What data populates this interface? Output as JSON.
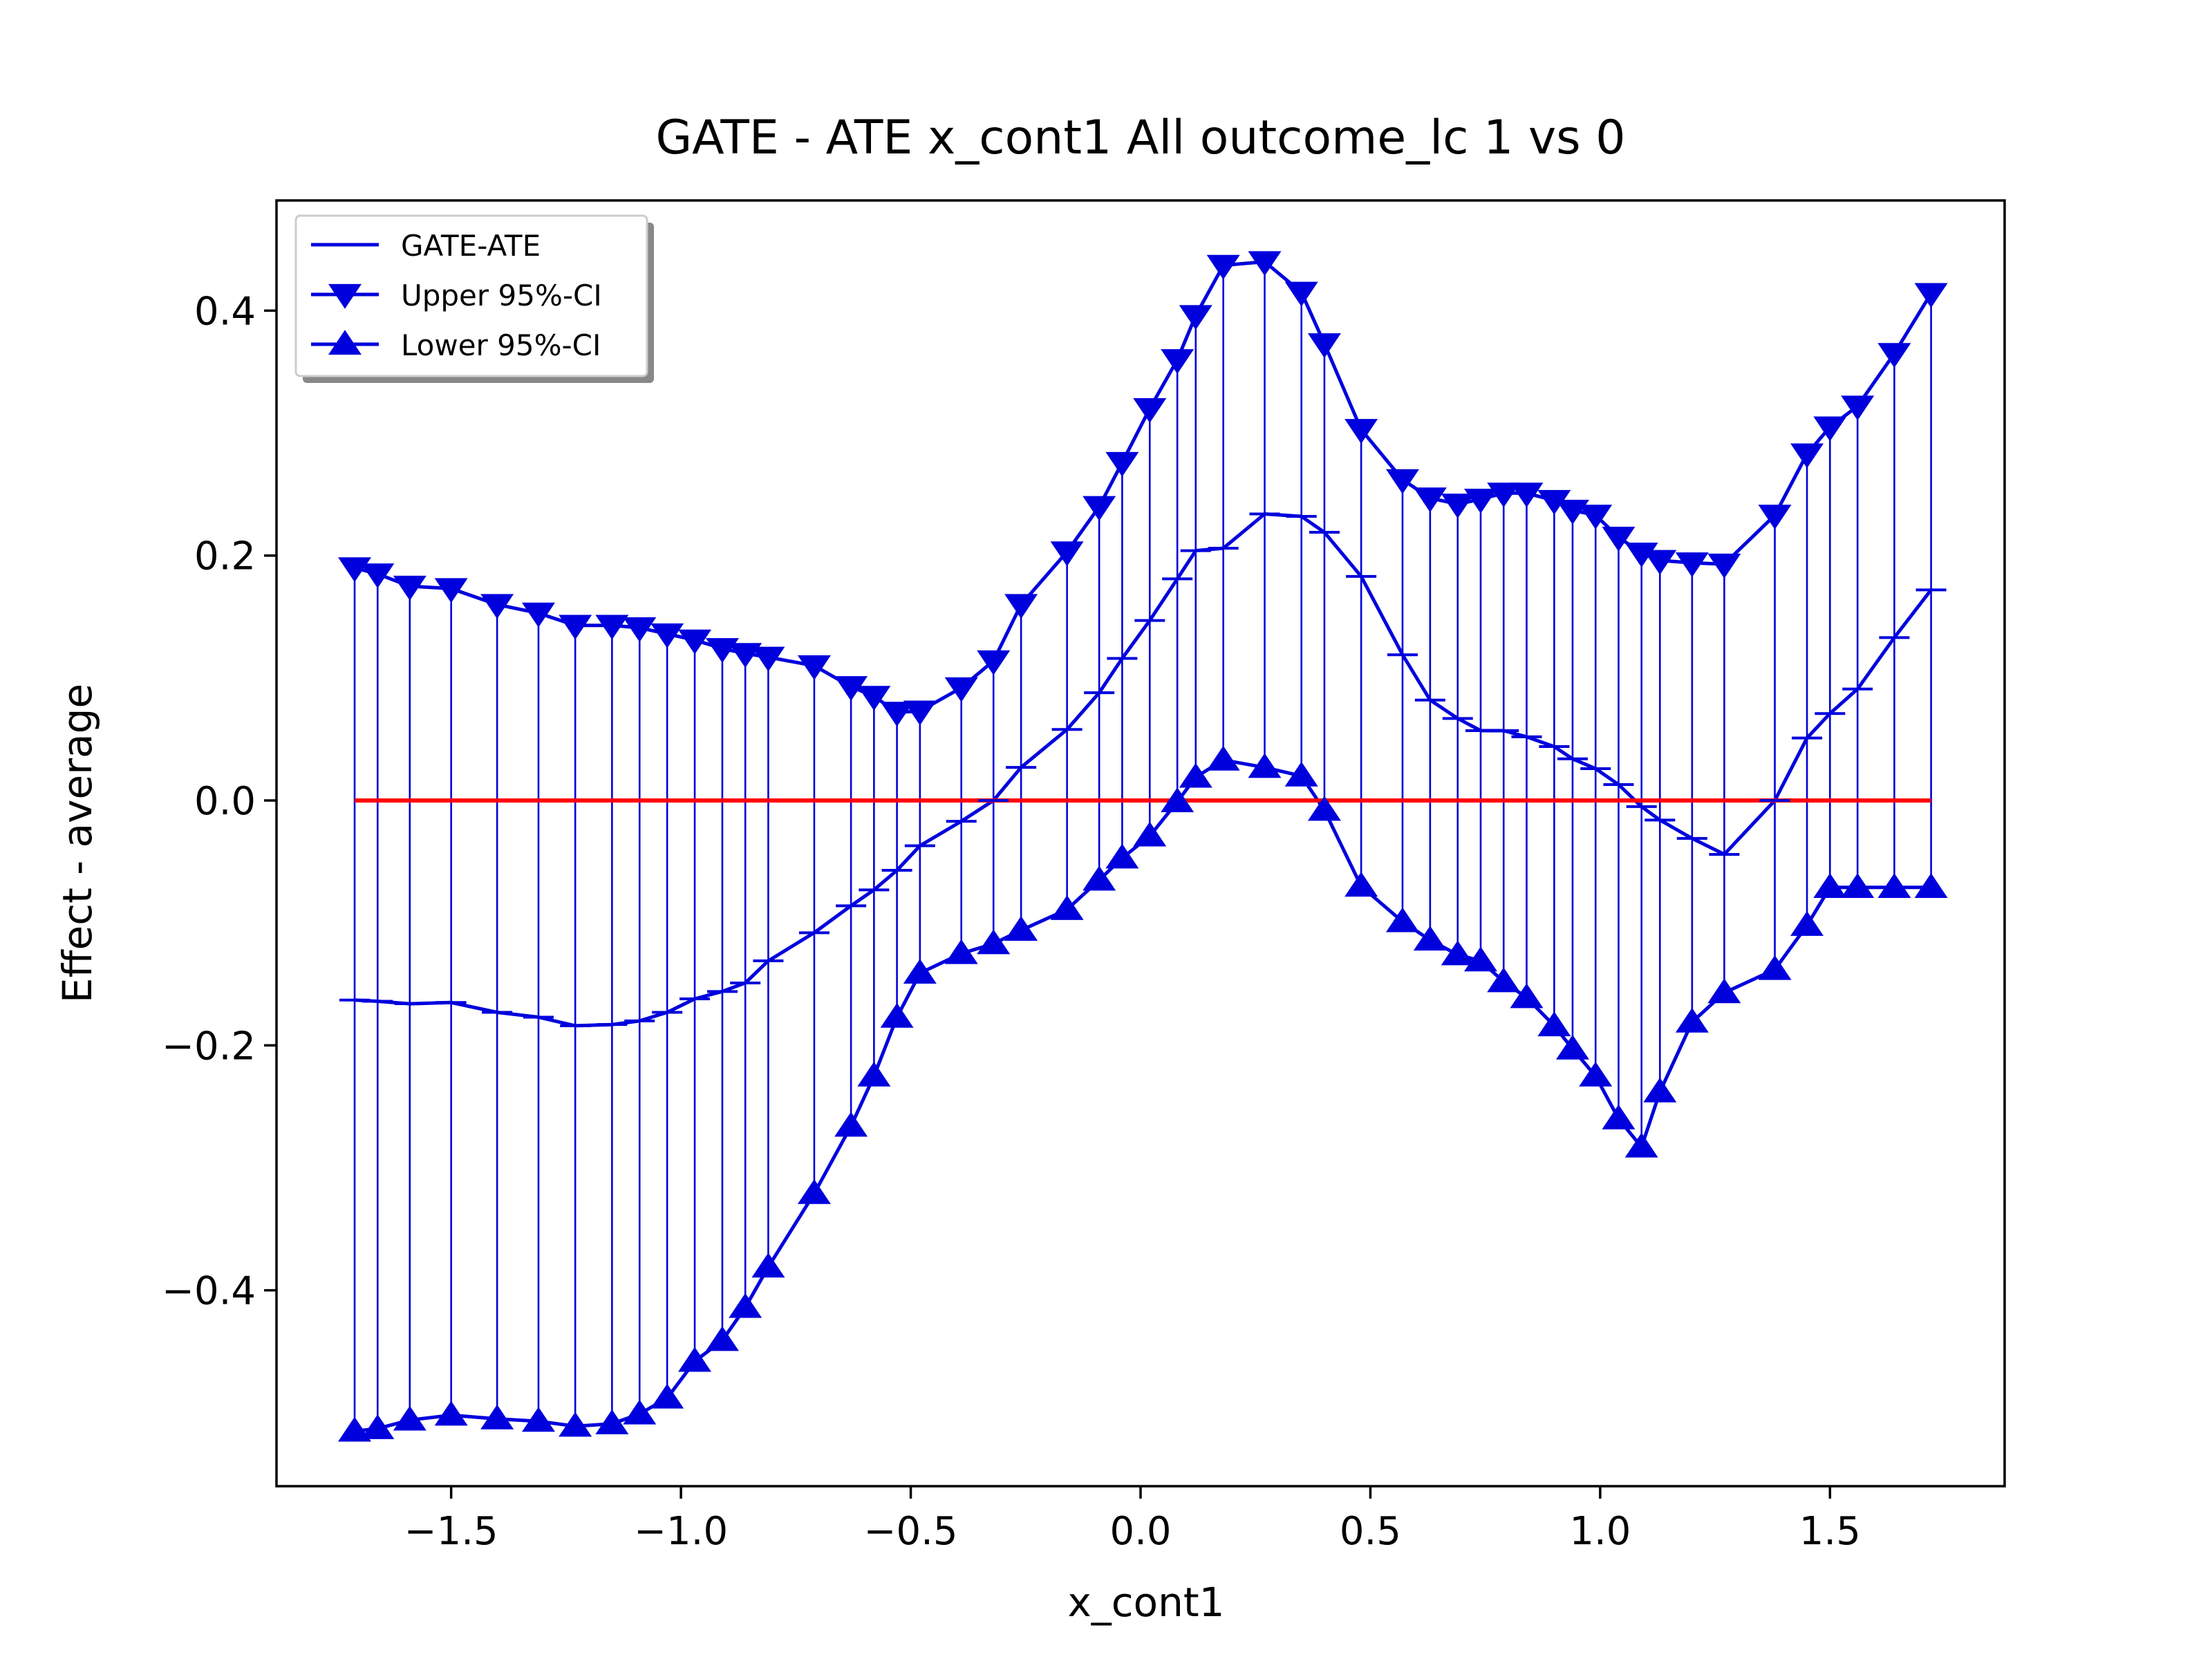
{
  "chart_data": {
    "type": "line",
    "title": "GATE - ATE x_cont1 All outcome_lc  1 vs 0",
    "xlabel": "x_cont1",
    "ylabel": "Effect - average",
    "xlim": [
      -1.88,
      1.88
    ],
    "ylim": [
      -0.56,
      0.49
    ],
    "grid": false,
    "legend_position": "upper-left",
    "x_ticks": [
      {
        "value": -1.5,
        "label": "−1.5"
      },
      {
        "value": -1.0,
        "label": "−1.0"
      },
      {
        "value": -0.5,
        "label": "−0.5"
      },
      {
        "value": 0.0,
        "label": "0.0"
      },
      {
        "value": 0.5,
        "label": "0.5"
      },
      {
        "value": 1.0,
        "label": "1.0"
      },
      {
        "value": 1.5,
        "label": "1.5"
      }
    ],
    "y_ticks": [
      {
        "value": -0.4,
        "label": "−0.4"
      },
      {
        "value": -0.2,
        "label": "−0.2"
      },
      {
        "value": 0.0,
        "label": "0.0"
      },
      {
        "value": 0.2,
        "label": "0.2"
      },
      {
        "value": 0.4,
        "label": "0.4"
      }
    ],
    "x": [
      -1.71,
      -1.66,
      -1.59,
      -1.5,
      -1.4,
      -1.31,
      -1.23,
      -1.15,
      -1.09,
      -1.03,
      -0.97,
      -0.91,
      -0.86,
      -0.81,
      -0.71,
      -0.63,
      -0.58,
      -0.53,
      -0.48,
      -0.39,
      -0.32,
      -0.26,
      -0.16,
      -0.09,
      -0.04,
      0.02,
      0.08,
      0.12,
      0.18,
      0.27,
      0.35,
      0.4,
      0.48,
      0.57,
      0.63,
      0.69,
      0.74,
      0.79,
      0.84,
      0.9,
      0.94,
      0.99,
      1.04,
      1.09,
      1.13,
      1.2,
      1.27,
      1.38,
      1.45,
      1.5,
      1.56,
      1.64,
      1.72
    ],
    "series": [
      {
        "name": "GATE-ATE",
        "color": "#0000dd",
        "marker": "dash",
        "values": [
          -0.163,
          -0.164,
          -0.166,
          -0.165,
          -0.173,
          -0.177,
          -0.184,
          -0.183,
          -0.18,
          -0.173,
          -0.162,
          -0.156,
          -0.149,
          -0.131,
          -0.108,
          -0.086,
          -0.073,
          -0.057,
          -0.037,
          -0.017,
          0.0,
          0.027,
          0.058,
          0.088,
          0.116,
          0.147,
          0.181,
          0.204,
          0.206,
          0.234,
          0.232,
          0.219,
          0.183,
          0.119,
          0.082,
          0.067,
          0.057,
          0.057,
          0.052,
          0.044,
          0.034,
          0.026,
          0.013,
          -0.005,
          -0.016,
          -0.031,
          -0.044,
          0.0,
          0.051,
          0.071,
          0.091,
          0.133,
          0.172
        ]
      },
      {
        "name": "Upper 95%-CI",
        "color": "#0000dd",
        "marker": "triangle-down",
        "values": [
          0.19,
          0.185,
          0.175,
          0.173,
          0.16,
          0.153,
          0.143,
          0.143,
          0.141,
          0.136,
          0.131,
          0.124,
          0.12,
          0.117,
          0.11,
          0.093,
          0.085,
          0.072,
          0.073,
          0.092,
          0.114,
          0.16,
          0.203,
          0.24,
          0.276,
          0.32,
          0.36,
          0.396,
          0.437,
          0.44,
          0.415,
          0.373,
          0.303,
          0.262,
          0.247,
          0.242,
          0.246,
          0.251,
          0.251,
          0.245,
          0.237,
          0.233,
          0.215,
          0.202,
          0.196,
          0.194,
          0.193,
          0.233,
          0.283,
          0.305,
          0.322,
          0.365,
          0.414
        ]
      },
      {
        "name": "Lower 95%-CI",
        "color": "#0000dd",
        "marker": "triangle-up",
        "values": [
          -0.515,
          -0.513,
          -0.506,
          -0.502,
          -0.505,
          -0.507,
          -0.511,
          -0.509,
          -0.501,
          -0.488,
          -0.458,
          -0.441,
          -0.414,
          -0.381,
          -0.321,
          -0.266,
          -0.225,
          -0.177,
          -0.141,
          -0.125,
          -0.117,
          -0.106,
          -0.089,
          -0.065,
          -0.047,
          -0.029,
          -0.001,
          0.019,
          0.033,
          0.027,
          0.02,
          -0.008,
          -0.07,
          -0.099,
          -0.114,
          -0.126,
          -0.131,
          -0.148,
          -0.161,
          -0.184,
          -0.203,
          -0.225,
          -0.26,
          -0.283,
          -0.238,
          -0.181,
          -0.157,
          -0.138,
          -0.102,
          -0.071,
          -0.071,
          -0.071,
          -0.071
        ]
      }
    ],
    "reference_line": {
      "y": 0.0,
      "color": "#ff0000"
    },
    "legend": [
      {
        "label": "GATE-ATE",
        "marker": "none"
      },
      {
        "label": "Upper 95%-CI",
        "marker": "triangle-down"
      },
      {
        "label": "Lower 95%-CI",
        "marker": "triangle-up"
      }
    ]
  }
}
